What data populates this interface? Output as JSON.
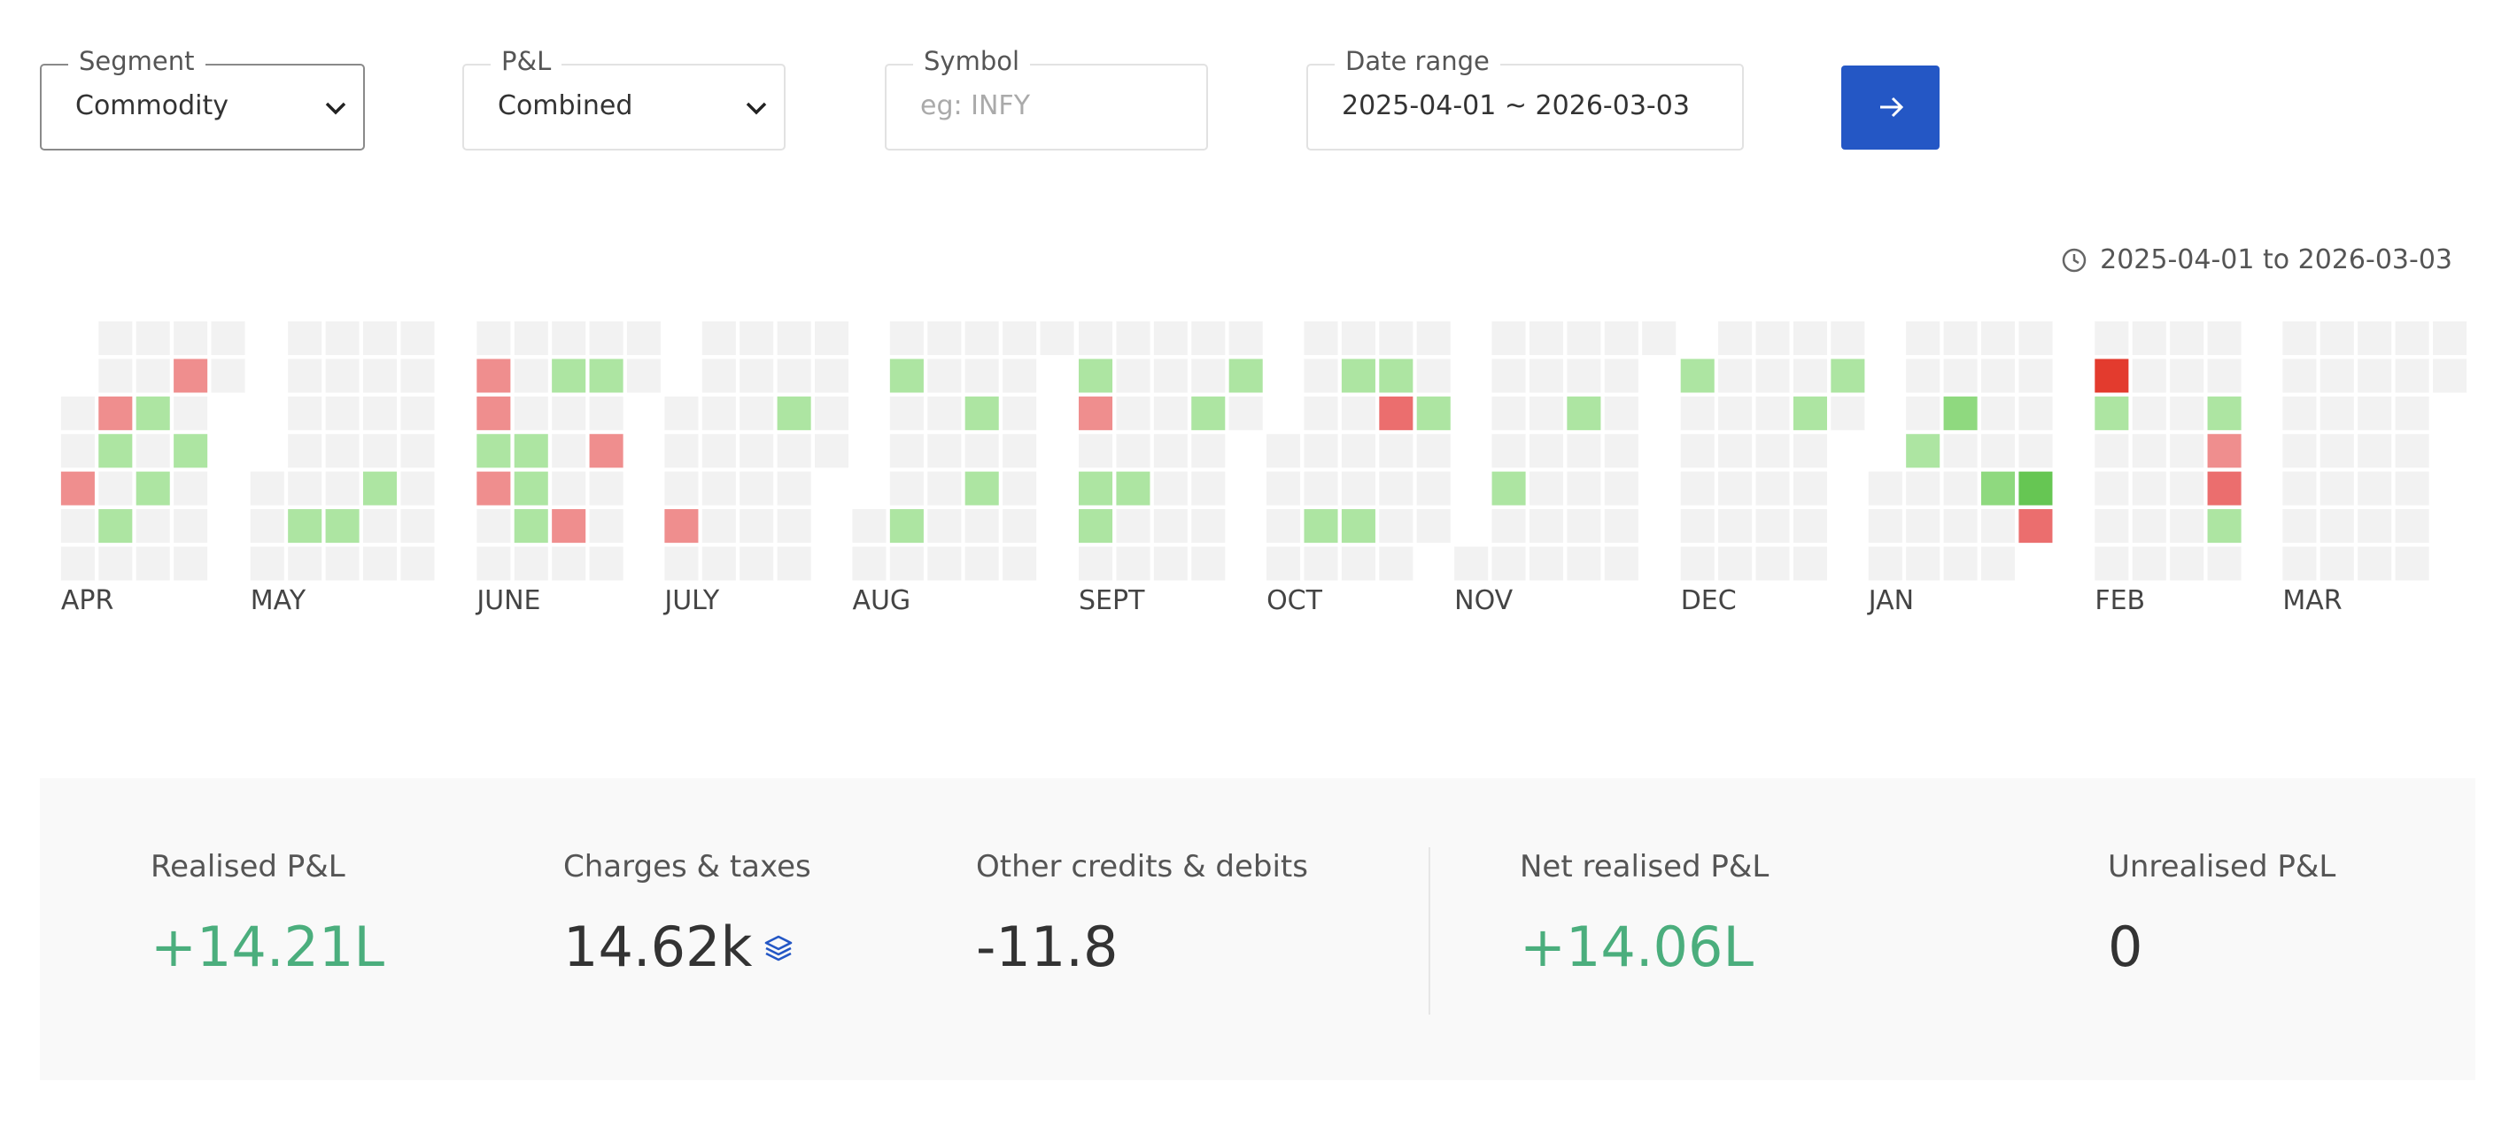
{
  "filters": {
    "segment": {
      "label": "Segment",
      "value": "Commodity"
    },
    "pnl": {
      "label": "P&L",
      "value": "Combined"
    },
    "symbol": {
      "label": "Symbol",
      "placeholder": "eg: INFY"
    },
    "date_range": {
      "label": "Date range",
      "value": "2025-04-01 ~ 2026-03-03"
    }
  },
  "period": "2025-04-01 to 2026-03-03",
  "heatmap": {
    "months": [
      "APR",
      "MAY",
      "JUNE",
      "JULY",
      "AUG",
      "SEPT",
      "OCT",
      "NOV",
      "DEC",
      "JAN",
      "FEB",
      "MAR"
    ]
  },
  "summary": [
    {
      "label": "Realised P&L",
      "value": "+14.21L"
    },
    {
      "label": "Charges & taxes",
      "value": "14.62k"
    },
    {
      "label": "Other credits & debits",
      "value": "-11.8"
    },
    {
      "label": "Net realised P&L",
      "value": "+14.06L"
    },
    {
      "label": "Unrealised P&L",
      "value": "0"
    }
  ]
}
